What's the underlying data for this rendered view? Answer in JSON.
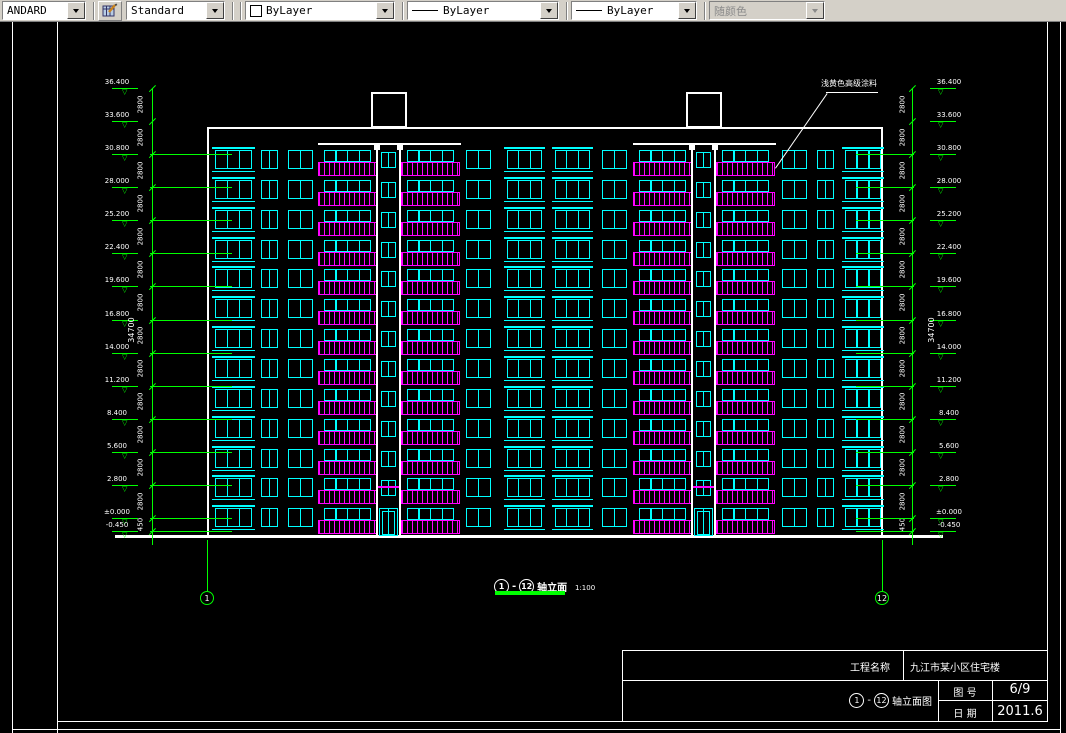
{
  "toolbar": {
    "style_value": "ANDARD",
    "text_style_value": "Standard",
    "color_value": "ByLayer",
    "linetype_value": "ByLayer",
    "lineweight_value": "ByLayer",
    "plot_style_value": "随颜色"
  },
  "annotation": {
    "text": "浅黄色高级涂料"
  },
  "drawing_label": {
    "axis_from": "1",
    "separator": "-",
    "axis_to": "12",
    "text": "轴立面",
    "scale": "1:100"
  },
  "levels": [
    "36.400",
    "33.600",
    "30.800",
    "28.000",
    "25.200",
    "22.400",
    "19.600",
    "16.800",
    "14.000",
    "11.200",
    "8.400",
    "5.600",
    "2.800",
    "±0.000",
    "-0.450"
  ],
  "dims": {
    "floor": "2800",
    "base": "450",
    "total": "34700"
  },
  "title_block": {
    "project_label": "工程名称",
    "project_name": "九江市某小区住宅楼",
    "drawing_name_text": "轴立面图",
    "number_label": "图 号",
    "number_value": "6/9",
    "date_label": "日 期",
    "date_value": "2011.6"
  },
  "colors": {
    "window": "#00ffff",
    "balcony": "#ff00ff",
    "dimension": "#00ff00",
    "outline": "#ffffff",
    "toolbar_face": "#d4d0c8"
  }
}
